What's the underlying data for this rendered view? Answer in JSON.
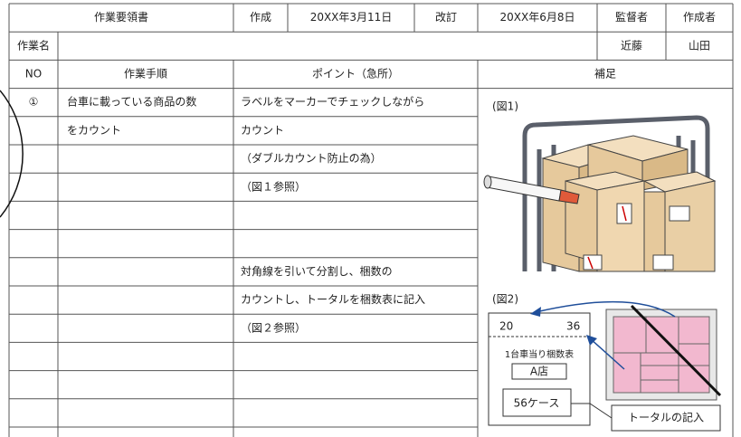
{
  "header": {
    "title": "作業要領書",
    "created_label": "作成",
    "created_date": "20XX年3月11日",
    "revised_label": "改訂",
    "revised_date": "20XX年6月8日",
    "supervisor_label": "監督者",
    "author_label": "作成者"
  },
  "work": {
    "label": "作業名",
    "supervisor": "近藤",
    "author": "山田"
  },
  "columns": [
    "NO",
    "作業手順",
    "ポイント（急所）",
    "補足"
  ],
  "rows": [
    [
      "①",
      "台車に載っている商品の数",
      "ラベルをマーカーでチェックしながら"
    ],
    [
      null,
      "をカウント",
      "カウント"
    ],
    [
      null,
      null,
      "（ダブルカウント防止の為）"
    ],
    [
      null,
      null,
      "（図１参照）"
    ],
    [
      null,
      null,
      null
    ],
    [
      null,
      null,
      null
    ],
    [
      null,
      null,
      "対角線を引いて分割し、梱数の"
    ],
    [
      null,
      null,
      "カウントし、トータルを梱数表に記入"
    ],
    [
      null,
      null,
      "（図２参照）"
    ],
    [
      null,
      null,
      null
    ],
    [
      null,
      null,
      null
    ],
    [
      null,
      null,
      null
    ],
    [
      null,
      null,
      null
    ]
  ],
  "figures": {
    "fig1": {
      "label": "(図1)"
    },
    "fig2": {
      "label": "(図2)",
      "left": "20",
      "right": "36",
      "table_title": "1台車当り梱数表",
      "store": "A店",
      "cases": "56ケース",
      "callout": "トータルの記入"
    }
  }
}
